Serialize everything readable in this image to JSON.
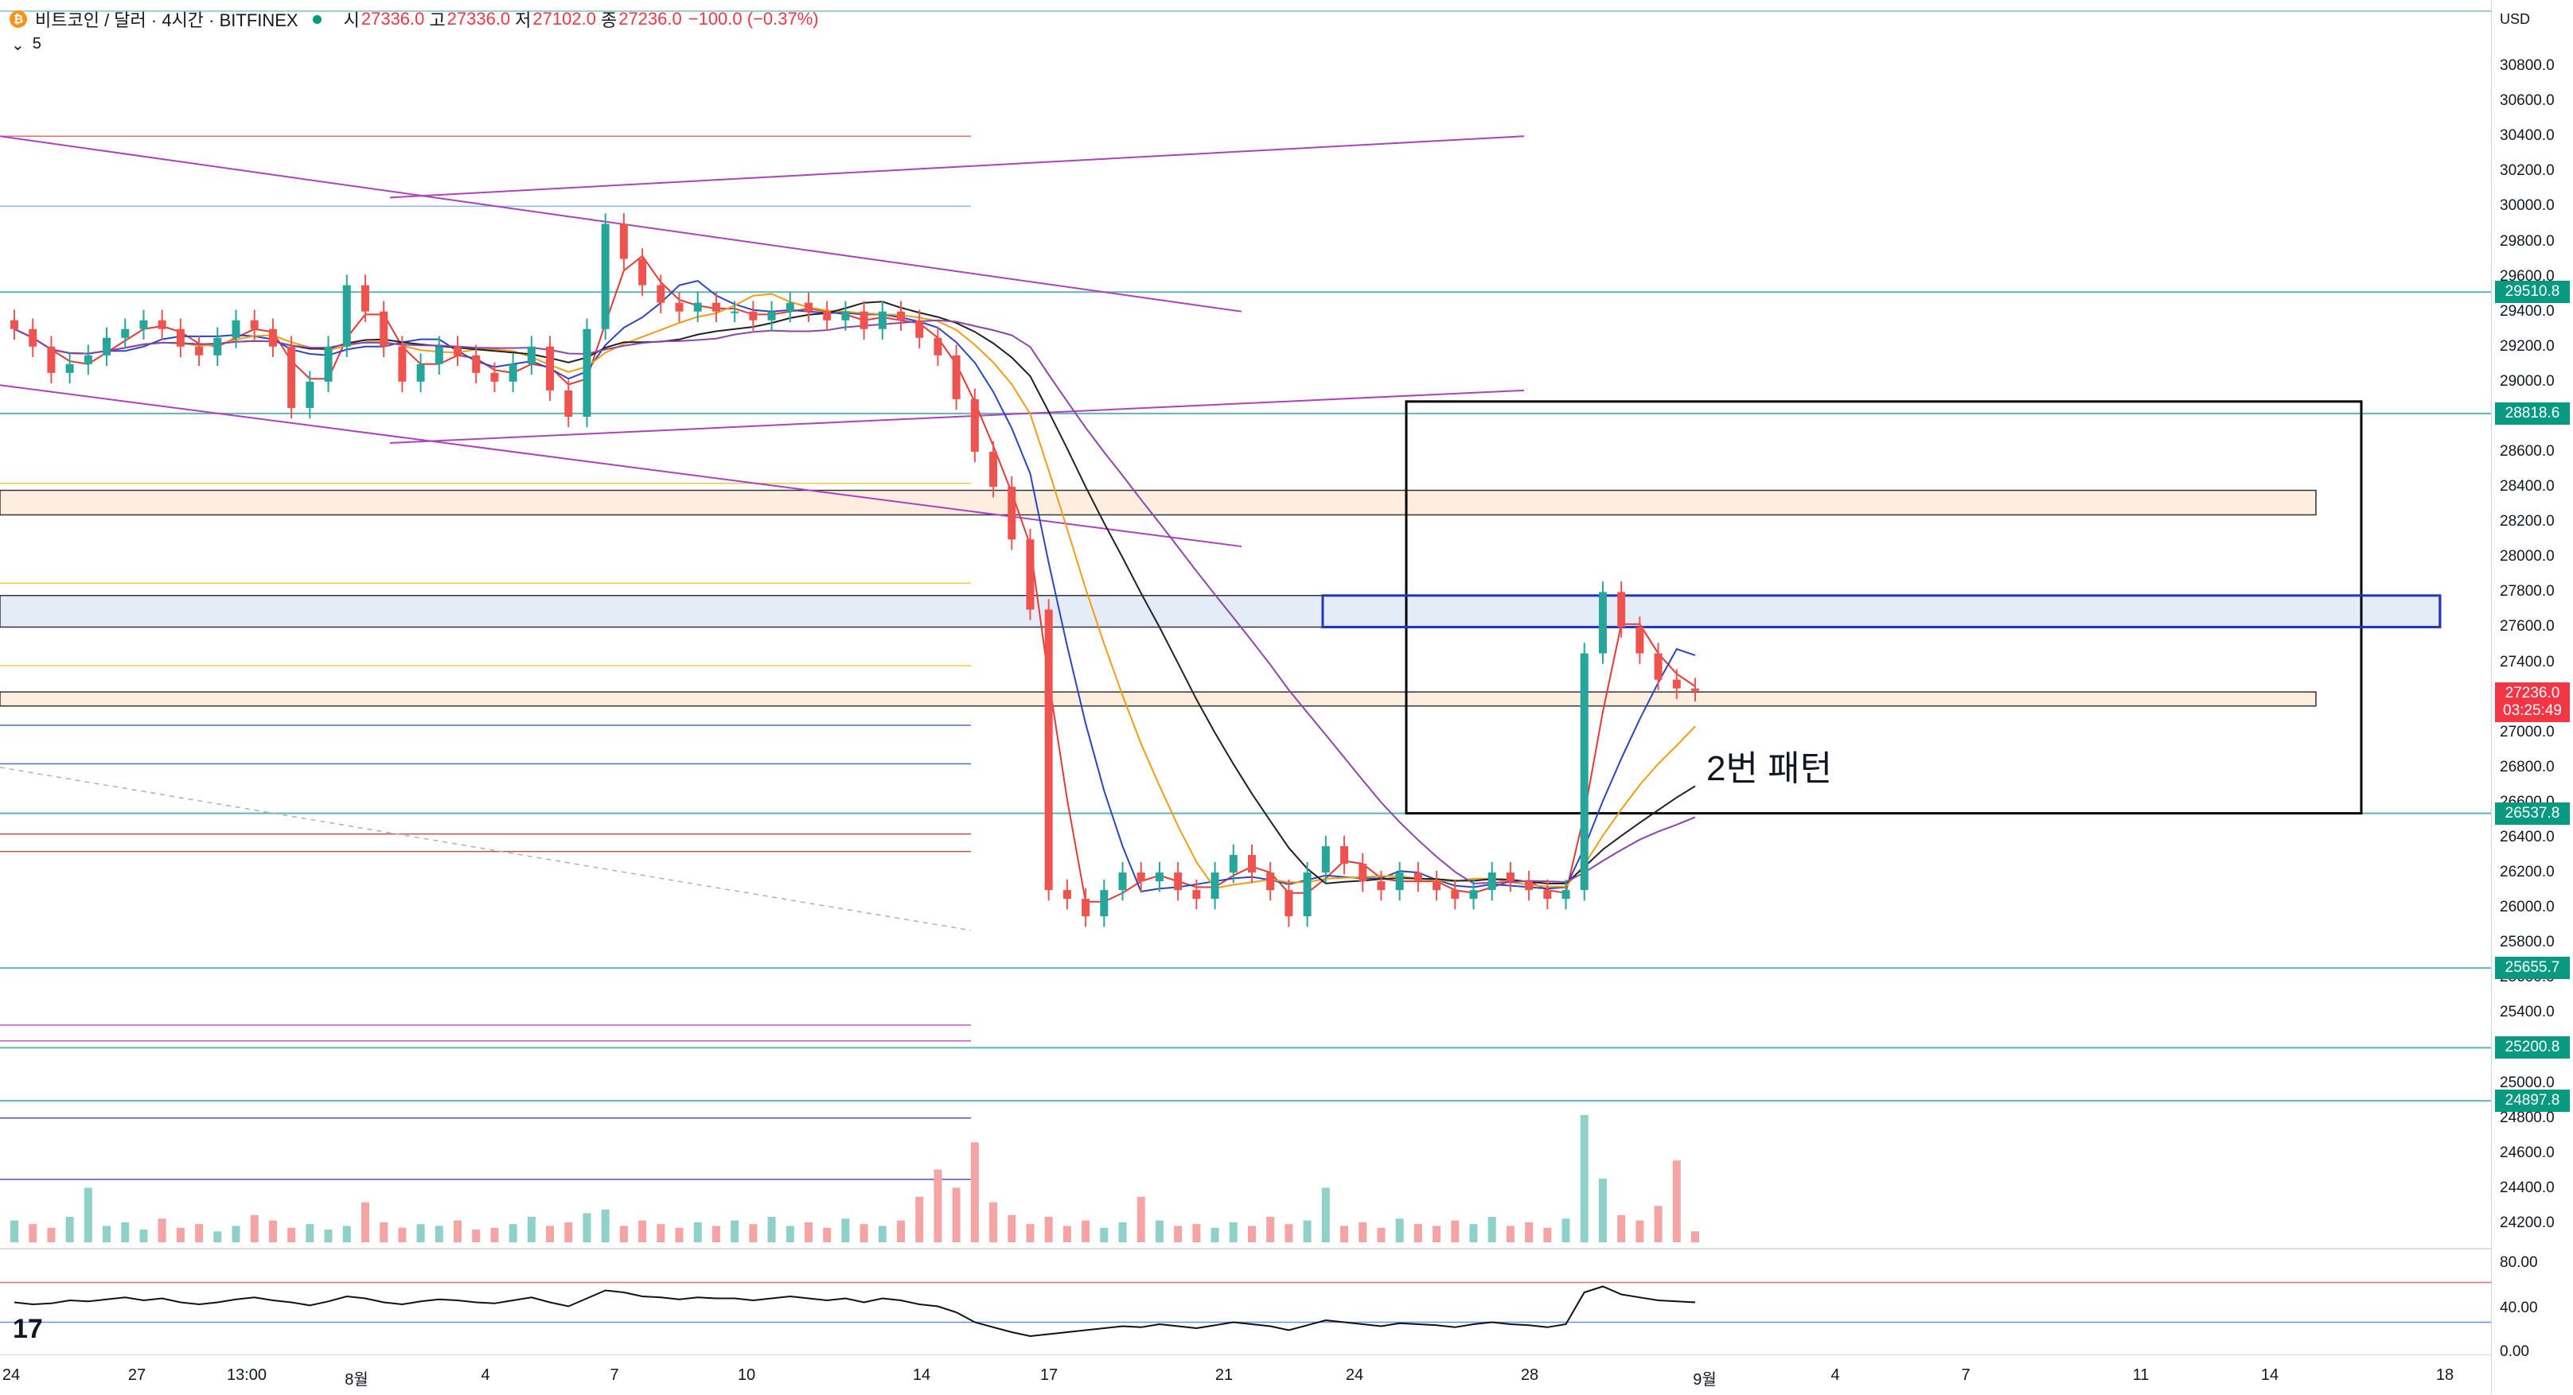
{
  "header": {
    "symbol": "비트코인 / 달러 · 4시간 · BITFINEX",
    "open_label": "시",
    "open": "27336.0",
    "high_label": "고",
    "high": "27336.0",
    "low_label": "저",
    "low": "27102.0",
    "close_label": "종",
    "close": "27236.0",
    "change": "−100.0 (−0.37%)",
    "indicator_value": "5"
  },
  "annotation": "2번 패턴",
  "price_axis": {
    "currency": "USD",
    "labels": [
      "30800.0",
      "30600.0",
      "30400.0",
      "30200.0",
      "30000.0",
      "29800.0",
      "29600.0",
      "29400.0",
      "29200.0",
      "29000.0",
      "28800.0",
      "28600.0",
      "28400.0",
      "28200.0",
      "28000.0",
      "27800.0",
      "27600.0",
      "27400.0",
      "27200.0",
      "27000.0",
      "26800.0",
      "26600.0",
      "26400.0",
      "26200.0",
      "26000.0",
      "25800.0",
      "25600.0",
      "25400.0",
      "25200.0",
      "25000.0",
      "24800.0",
      "24600.0",
      "24400.0",
      "24200.0"
    ],
    "tags": [
      {
        "text": "29510.8",
        "color": "#089981"
      },
      {
        "text": "28818.6",
        "color": "#089981"
      },
      {
        "text": "26537.8",
        "color": "#089981"
      },
      {
        "text": "25655.7",
        "color": "#089981"
      },
      {
        "text": "25200.8",
        "color": "#089981"
      },
      {
        "text": "24897.8",
        "color": "#089981"
      }
    ],
    "current_price": "27236.0",
    "countdown": "03:25:49",
    "rsi_labels": [
      "80.00",
      "40.00",
      "0.00"
    ]
  },
  "time_axis": {
    "labels": [
      "24",
      "27",
      "13:00",
      "8월",
      "4",
      "7",
      "10",
      "14",
      "17",
      "21",
      "24",
      "28",
      "9월",
      "4",
      "7",
      "11",
      "14",
      "18"
    ]
  },
  "chart_data": {
    "type": "candlestick",
    "currency": "USD",
    "ylim": [
      24100,
      30950
    ],
    "horizontal_levels": [
      29510.8,
      28818.6,
      26537.8,
      25655.7,
      25200.8,
      24897.8
    ],
    "zones": [
      {
        "low": 28240,
        "high": 28380
      },
      {
        "low": 27600,
        "high": 27780
      },
      {
        "low": 27150,
        "high": 27230
      }
    ],
    "close_path": [
      29300,
      29200,
      29050,
      29100,
      29150,
      29250,
      29300,
      29350,
      29300,
      29200,
      29150,
      29250,
      29350,
      29300,
      29200,
      28850,
      29000,
      29200,
      29550,
      29400,
      29200,
      29000,
      29100,
      29200,
      29150,
      29050,
      29000,
      29100,
      29200,
      28950,
      28800,
      29300,
      29900,
      29700,
      29550,
      29450,
      29400,
      29450,
      29400,
      29400,
      29350,
      29400,
      29450,
      29400,
      29350,
      29400,
      29300,
      29400,
      29350,
      29250,
      29150,
      28900,
      28600,
      28400,
      28100,
      27700,
      26100,
      26050,
      25950,
      26100,
      26200,
      26150,
      26200,
      26100,
      26050,
      26200,
      26300,
      26200,
      26100,
      25950,
      26200,
      26350,
      26250,
      26150,
      26100,
      26200,
      26150,
      26100,
      26050,
      26100,
      26200,
      26150,
      26100,
      26050,
      26100,
      27450,
      27800,
      27600,
      27450,
      27300,
      27250,
      27236
    ],
    "volume_series": [
      12,
      10,
      8,
      14,
      30,
      9,
      11,
      7,
      13,
      8,
      10,
      6,
      9,
      15,
      12,
      8,
      10,
      7,
      9,
      22,
      11,
      8,
      10,
      9,
      12,
      7,
      8,
      10,
      14,
      9,
      11,
      16,
      18,
      9,
      12,
      10,
      8,
      11,
      9,
      12,
      10,
      14,
      9,
      11,
      8,
      13,
      10,
      9,
      12,
      25,
      40,
      30,
      55,
      22,
      15,
      10,
      14,
      9,
      12,
      8,
      11,
      25,
      12,
      9,
      10,
      8,
      11,
      9,
      14,
      10,
      12,
      30,
      9,
      11,
      8,
      13,
      10,
      9,
      12,
      10,
      14,
      9,
      11,
      8,
      13,
      70,
      35,
      15,
      12,
      20,
      45,
      6
    ],
    "rsi_series": [
      50,
      48,
      49,
      52,
      51,
      53,
      55,
      52,
      54,
      50,
      48,
      50,
      53,
      55,
      52,
      50,
      47,
      51,
      56,
      54,
      50,
      48,
      51,
      53,
      52,
      50,
      49,
      52,
      55,
      50,
      46,
      54,
      62,
      60,
      56,
      55,
      53,
      55,
      54,
      54,
      52,
      54,
      56,
      54,
      52,
      54,
      50,
      54,
      52,
      48,
      46,
      40,
      30,
      25,
      20,
      16,
      18,
      20,
      22,
      24,
      26,
      25,
      28,
      26,
      24,
      27,
      30,
      28,
      26,
      22,
      27,
      32,
      30,
      28,
      26,
      29,
      28,
      27,
      25,
      28,
      30,
      28,
      27,
      25,
      28,
      60,
      66,
      58,
      55,
      52,
      51,
      50
    ],
    "rsi_levels": [
      70,
      30
    ],
    "moving_averages": [
      "red",
      "blue",
      "orange",
      "black",
      "purple"
    ]
  }
}
